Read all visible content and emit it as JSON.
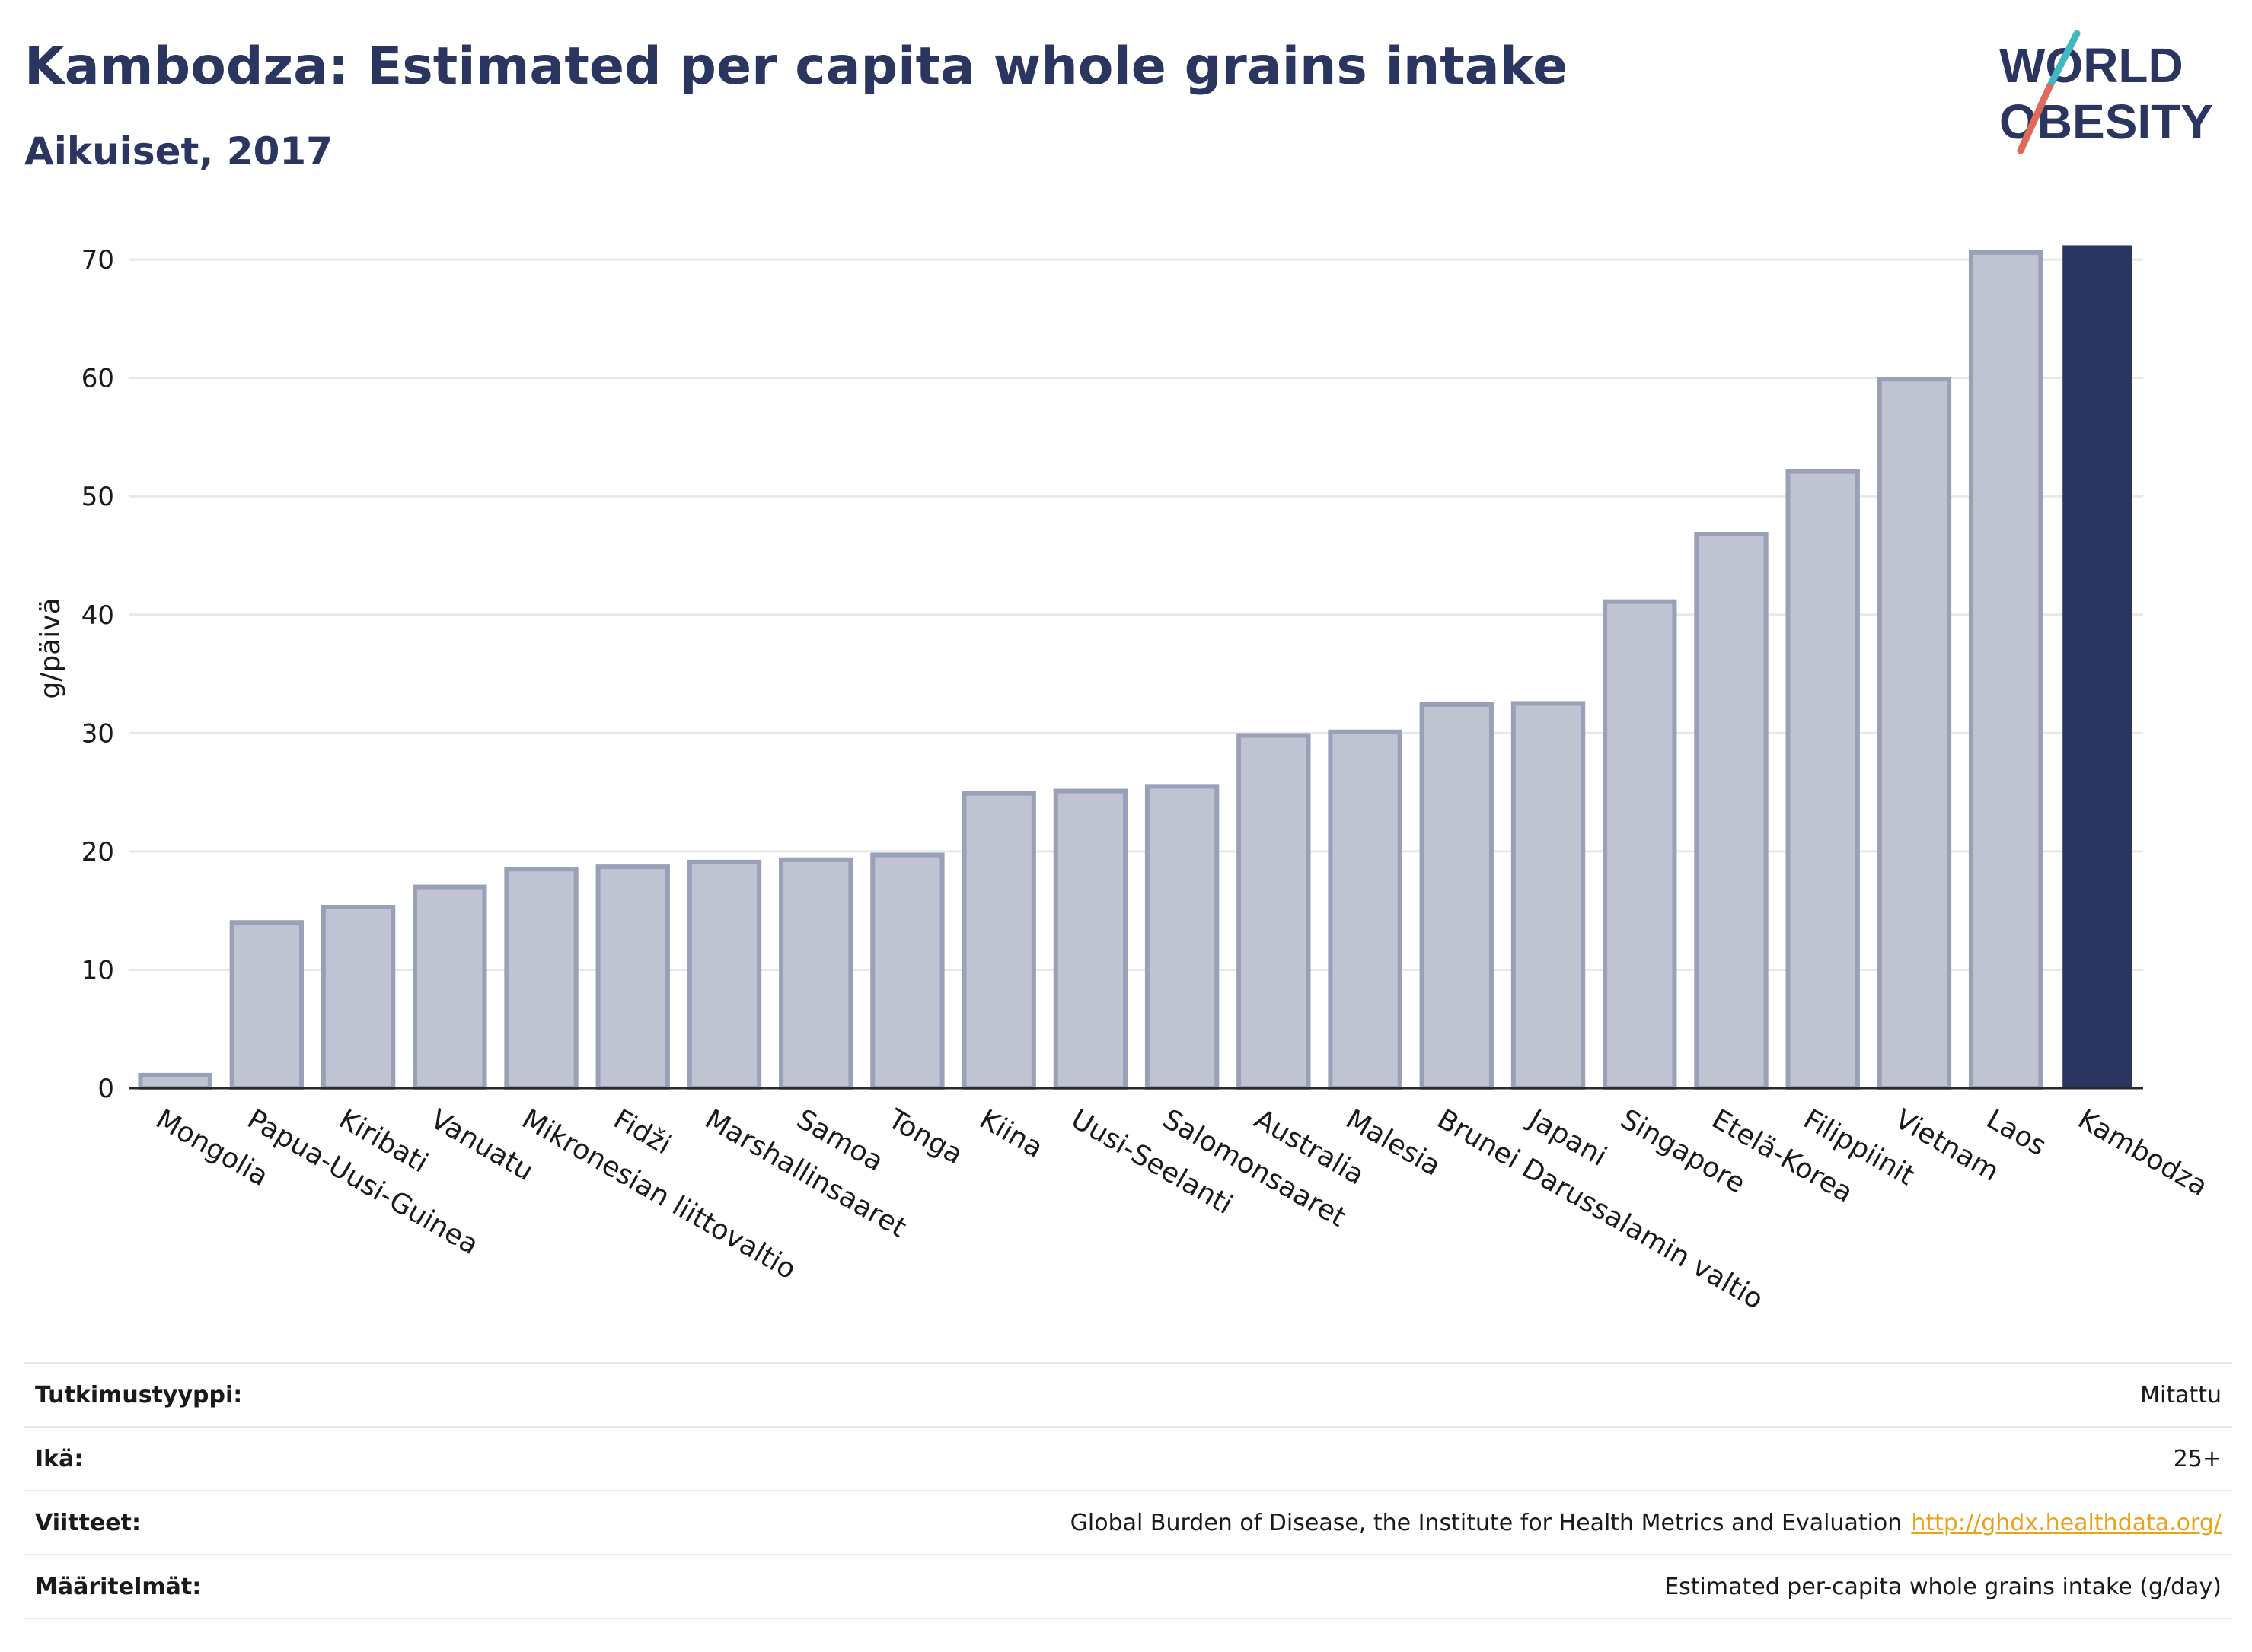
{
  "header": {
    "title": "Kambodza: Estimated per capita whole grains intake",
    "subtitle": "Aikuiset, 2017"
  },
  "logo": {
    "line1": "WORLD",
    "line2": "OBESITY",
    "accent_teal": "#3fb8c0",
    "accent_red": "#e06a5a"
  },
  "colors": {
    "bar": "#bfc3d2",
    "bar_stroke": "#9aa0b8",
    "highlight": "#2a3560",
    "grid": "#e6e8ec",
    "axis": "#2a2a2a",
    "link": "#e8a318"
  },
  "chart_data": {
    "type": "bar",
    "ylabel": "g/päivä",
    "ylim": [
      0,
      72
    ],
    "yticks": [
      0,
      10,
      20,
      30,
      40,
      50,
      60,
      70
    ],
    "grid": true,
    "highlight": "Kambodza",
    "categories": [
      "Mongolia",
      "Papua-Uusi-Guinea",
      "Kiribati",
      "Vanuatu",
      "Mikronesian liittovaltio",
      "Fidži",
      "Marshallinsaaret",
      "Samoa",
      "Tonga",
      "Kiina",
      "Uusi-Seelanti",
      "Salomonsaaret",
      "Australia",
      "Malesia",
      "Brunei Darussalamin valtio",
      "Japani",
      "Singapore",
      "Etelä-Korea",
      "Filippiinit",
      "Vietnam",
      "Laos",
      "Kambodza"
    ],
    "values": [
      1.1,
      14.0,
      15.3,
      17.0,
      18.5,
      18.7,
      19.1,
      19.3,
      19.7,
      24.9,
      25.1,
      25.5,
      29.8,
      30.1,
      32.4,
      32.5,
      41.1,
      46.8,
      52.1,
      59.9,
      70.6,
      71.2
    ]
  },
  "info": {
    "rows": [
      {
        "label": "Tutkimustyyppi:",
        "value": "Mitattu"
      },
      {
        "label": "Ikä:",
        "value": "25+"
      },
      {
        "label": "Viitteet:",
        "value": "Global Burden of Disease, the Institute for Health Metrics and Evaluation",
        "link": "http://ghdx.healthdata.org/"
      },
      {
        "label": "Määritelmät:",
        "value": "Estimated per-capita whole grains intake (g/day)"
      }
    ]
  }
}
